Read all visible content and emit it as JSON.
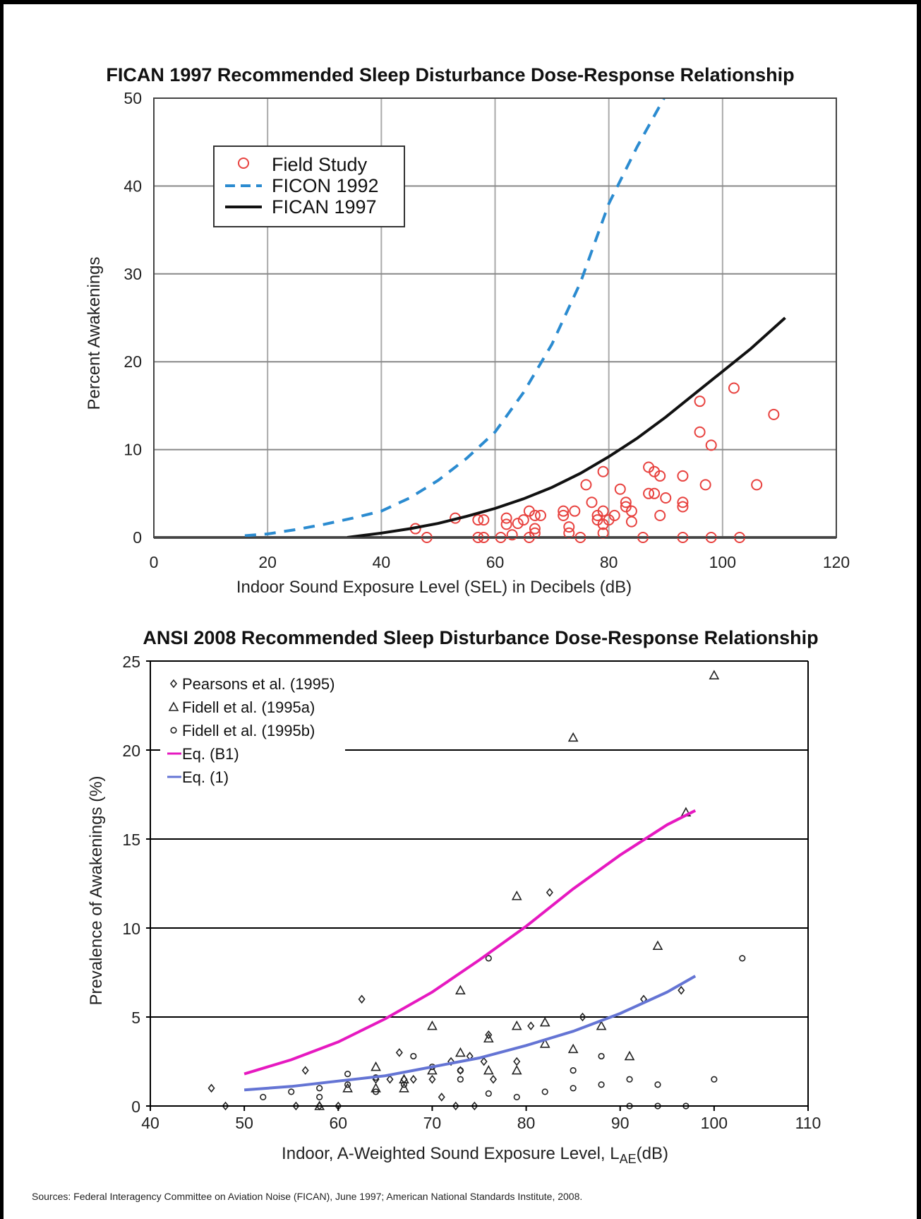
{
  "source_note": "Sources: Federal Interagency Committee on Aviation Noise (FICAN), June 1997; American National Standards Institute, 2008.",
  "chart_data": [
    {
      "type": "scatter",
      "title": "FICAN 1997 Recommended Sleep Disturbance Dose-Response Relationship",
      "xlabel": "Indoor Sound Exposure Level (SEL) in Decibels (dB)",
      "ylabel": "Percent Awakenings",
      "xlim": [
        0,
        120
      ],
      "ylim": [
        0,
        50
      ],
      "xticks": [
        "0",
        "20",
        "40",
        "60",
        "80",
        "100",
        "120"
      ],
      "yticks": [
        "0",
        "10",
        "20",
        "30",
        "40",
        "50"
      ],
      "grid": true,
      "legend_position": "top-left",
      "series": [
        {
          "name": "Field Study",
          "kind": "scatter",
          "marker": "circle",
          "color": "#e8423f",
          "points": [
            [
              46,
              1.0
            ],
            [
              48,
              0
            ],
            [
              53,
              2.2
            ],
            [
              57,
              2.0
            ],
            [
              57,
              0
            ],
            [
              58,
              0
            ],
            [
              58,
              2.0
            ],
            [
              61,
              0
            ],
            [
              62,
              2.2
            ],
            [
              62,
              1.5
            ],
            [
              63,
              0.3
            ],
            [
              64,
              1.6
            ],
            [
              65,
              2.0
            ],
            [
              66,
              3.0
            ],
            [
              66,
              0
            ],
            [
              67,
              2.5
            ],
            [
              67,
              0.5
            ],
            [
              67,
              1.0
            ],
            [
              68,
              2.5
            ],
            [
              72,
              3.0
            ],
            [
              72,
              2.5
            ],
            [
              73,
              1.2
            ],
            [
              73,
              0.5
            ],
            [
              74,
              3.0
            ],
            [
              75,
              0
            ],
            [
              76,
              6.0
            ],
            [
              77,
              4.0
            ],
            [
              78,
              2.5
            ],
            [
              78,
              2.0
            ],
            [
              79,
              7.5
            ],
            [
              79,
              1.5
            ],
            [
              79,
              3.0
            ],
            [
              79,
              0.5
            ],
            [
              80,
              2.0
            ],
            [
              81,
              2.5
            ],
            [
              82,
              5.5
            ],
            [
              83,
              4.0
            ],
            [
              83,
              3.5
            ],
            [
              84,
              3.0
            ],
            [
              84,
              1.8
            ],
            [
              86,
              0
            ],
            [
              87,
              8.0
            ],
            [
              87,
              5.0
            ],
            [
              88,
              7.5
            ],
            [
              88,
              5.0
            ],
            [
              89,
              7.0
            ],
            [
              89,
              2.5
            ],
            [
              90,
              4.5
            ],
            [
              93,
              7.0
            ],
            [
              93,
              3.5
            ],
            [
              93,
              4.0
            ],
            [
              93,
              0
            ],
            [
              96,
              15.5
            ],
            [
              96,
              12.0
            ],
            [
              97,
              6.0
            ],
            [
              98,
              10.5
            ],
            [
              98,
              0
            ],
            [
              102,
              17.0
            ],
            [
              103,
              0
            ],
            [
              106,
              6.0
            ],
            [
              109,
              14.0
            ]
          ]
        },
        {
          "name": "FICON 1992",
          "kind": "line",
          "style": "dashed",
          "color": "#2b8bd0",
          "points": [
            [
              16,
              0.2
            ],
            [
              20,
              0.4
            ],
            [
              25,
              0.9
            ],
            [
              30,
              1.5
            ],
            [
              35,
              2.2
            ],
            [
              40,
              3.0
            ],
            [
              45,
              4.5
            ],
            [
              50,
              6.5
            ],
            [
              55,
              9.0
            ],
            [
              60,
              12.0
            ],
            [
              65,
              16.5
            ],
            [
              70,
              22.0
            ],
            [
              75,
              29.0
            ],
            [
              80,
              38.0
            ],
            [
              85,
              44.5
            ],
            [
              91,
              51.5
            ]
          ]
        },
        {
          "name": "FICAN 1997",
          "kind": "line",
          "style": "solid",
          "color": "#111111",
          "points": [
            [
              34,
              0
            ],
            [
              40,
              0.5
            ],
            [
              45,
              1.0
            ],
            [
              50,
              1.6
            ],
            [
              55,
              2.4
            ],
            [
              60,
              3.3
            ],
            [
              65,
              4.4
            ],
            [
              70,
              5.7
            ],
            [
              75,
              7.3
            ],
            [
              80,
              9.2
            ],
            [
              85,
              11.3
            ],
            [
              90,
              13.7
            ],
            [
              95,
              16.3
            ],
            [
              100,
              18.9
            ],
            [
              105,
              21.5
            ],
            [
              111,
              25.0
            ]
          ]
        }
      ]
    },
    {
      "type": "scatter",
      "title": "ANSI 2008 Recommended Sleep Disturbance Dose-Response Relationship",
      "xlabel": "Indoor, A-Weighted Sound Exposure Level, L",
      "xlabel_sub": "AE",
      "xlabel_suffix": "(dB)",
      "ylabel": "Prevalence of Awakenings (%)",
      "xlim": [
        40,
        110
      ],
      "ylim": [
        0,
        25
      ],
      "xticks": [
        "40",
        "50",
        "60",
        "70",
        "80",
        "90",
        "100",
        "110"
      ],
      "yticks": [
        "0",
        "5",
        "10",
        "15",
        "20",
        "25"
      ],
      "grid": "horizontal",
      "legend_position": "top-left",
      "series": [
        {
          "name": "Pearsons et al. (1995)",
          "kind": "scatter",
          "marker": "diamond",
          "color": "#222222",
          "points": [
            [
              46.5,
              1.0
            ],
            [
              48,
              0
            ],
            [
              55.5,
              0
            ],
            [
              56.5,
              2.0
            ],
            [
              58,
              0
            ],
            [
              60,
              0
            ],
            [
              62.5,
              6.0
            ],
            [
              64,
              1.5
            ],
            [
              65.5,
              1.5
            ],
            [
              66.5,
              3.0
            ],
            [
              67,
              1.5
            ],
            [
              68,
              1.5
            ],
            [
              70,
              1.5
            ],
            [
              71,
              0.5
            ],
            [
              72,
              2.5
            ],
            [
              72.5,
              0
            ],
            [
              73,
              2.0
            ],
            [
              74,
              2.8
            ],
            [
              74.5,
              0
            ],
            [
              75.5,
              2.5
            ],
            [
              76,
              4.0
            ],
            [
              76.5,
              1.5
            ],
            [
              79,
              2.5
            ],
            [
              80.5,
              4.5
            ],
            [
              82.5,
              12.0
            ],
            [
              86,
              5.0
            ],
            [
              92.5,
              6.0
            ],
            [
              96.5,
              6.5
            ]
          ]
        },
        {
          "name": "Fidell et al. (1995a)",
          "kind": "scatter",
          "marker": "triangle",
          "color": "#222222",
          "points": [
            [
              58,
              0
            ],
            [
              61,
              1.0
            ],
            [
              64,
              2.2
            ],
            [
              64,
              1.0
            ],
            [
              67,
              1.5
            ],
            [
              67,
              1.0
            ],
            [
              70,
              4.5
            ],
            [
              70,
              2.0
            ],
            [
              73,
              6.5
            ],
            [
              73,
              3.0
            ],
            [
              76,
              3.8
            ],
            [
              76,
              2.0
            ],
            [
              79,
              11.8
            ],
            [
              79,
              4.5
            ],
            [
              79,
              2.0
            ],
            [
              82,
              4.7
            ],
            [
              82,
              3.5
            ],
            [
              85,
              20.7
            ],
            [
              85,
              3.2
            ],
            [
              88,
              4.5
            ],
            [
              91,
              2.8
            ],
            [
              94,
              9.0
            ],
            [
              97,
              16.5
            ],
            [
              100,
              24.2
            ]
          ]
        },
        {
          "name": "Fidell et al. (1995b)",
          "kind": "scatter",
          "marker": "circle",
          "color": "#222222",
          "points": [
            [
              52,
              0.5
            ],
            [
              55,
              0.8
            ],
            [
              58,
              1.0
            ],
            [
              58,
              0.5
            ],
            [
              61,
              1.8
            ],
            [
              61,
              1.2
            ],
            [
              64,
              0.8
            ],
            [
              64,
              1.6
            ],
            [
              67,
              1.2
            ],
            [
              68,
              2.8
            ],
            [
              70,
              2.2
            ],
            [
              73,
              2.0
            ],
            [
              73,
              1.5
            ],
            [
              76,
              8.3
            ],
            [
              76,
              0.7
            ],
            [
              79,
              0.5
            ],
            [
              82,
              0.8
            ],
            [
              85,
              2.0
            ],
            [
              85,
              1.0
            ],
            [
              88,
              2.8
            ],
            [
              88,
              1.2
            ],
            [
              91,
              1.5
            ],
            [
              91,
              0
            ],
            [
              94,
              1.2
            ],
            [
              94,
              0
            ],
            [
              97,
              0
            ],
            [
              100,
              1.5
            ],
            [
              103,
              8.3
            ]
          ]
        },
        {
          "name": "Eq. (B1)",
          "kind": "line",
          "color": "#e619c0",
          "points": [
            [
              50,
              1.8
            ],
            [
              55,
              2.6
            ],
            [
              60,
              3.6
            ],
            [
              65,
              4.9
            ],
            [
              70,
              6.4
            ],
            [
              75,
              8.2
            ],
            [
              80,
              10.1
            ],
            [
              85,
              12.2
            ],
            [
              90,
              14.1
            ],
            [
              95,
              15.8
            ],
            [
              98,
              16.6
            ]
          ]
        },
        {
          "name": "Eq. (1)",
          "kind": "line",
          "color": "#6474d4",
          "points": [
            [
              50,
              0.9
            ],
            [
              55,
              1.1
            ],
            [
              60,
              1.4
            ],
            [
              65,
              1.7
            ],
            [
              70,
              2.2
            ],
            [
              75,
              2.7
            ],
            [
              80,
              3.4
            ],
            [
              85,
              4.2
            ],
            [
              90,
              5.2
            ],
            [
              95,
              6.4
            ],
            [
              98,
              7.3
            ]
          ]
        }
      ]
    }
  ]
}
